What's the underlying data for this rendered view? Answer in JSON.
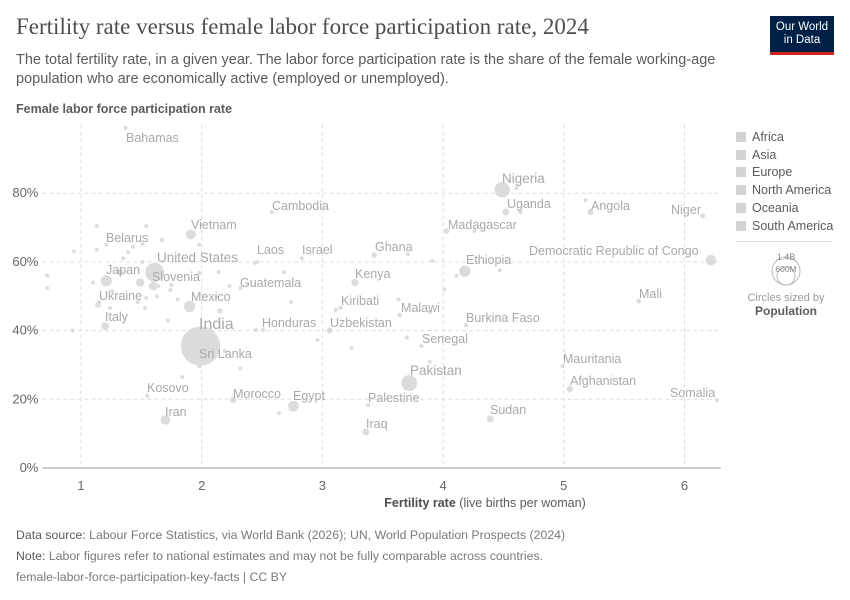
{
  "header": {
    "title": "Fertility rate versus female labor force participation rate, 2024",
    "subtitle": "The total fertility rate, in a given year. The labor force participation rate is the share of the female working-age population who are economically active (employed or unemployed).",
    "logo": "Our World in Data"
  },
  "legend": {
    "items": [
      "Africa",
      "Asia",
      "Europe",
      "North America",
      "Oceania",
      "South America"
    ],
    "size_large": "1.4B",
    "size_small": "600M",
    "size_note": "Circles sized by",
    "size_var": "Population"
  },
  "footer": {
    "source_label": "Data source:",
    "source": "Labour Force Statistics, via World Bank (2026); UN, World Population Prospects (2024)",
    "note_label": "Note:",
    "note": "Labor figures refer to national estimates and may not be fully comparable across countries.",
    "slug": "female-labor-force-participation-key-facts | CC BY"
  },
  "colors": {
    "point": "#d6d6d6",
    "label": "#a9a9a9",
    "grid": "#dddddd",
    "logo_bg": "#002147",
    "logo_bar": "#ce261e"
  },
  "chart_data": {
    "type": "scatter",
    "xlabel_bold": "Fertility rate",
    "xlabel_rest": "(live births per woman)",
    "ylabel": "Female labor force participation rate",
    "xlim": [
      0.68,
      6.3
    ],
    "ylim": [
      0,
      100
    ],
    "xticks": [
      "1",
      "2",
      "3",
      "4",
      "5",
      "6"
    ],
    "yticks": [
      "0%",
      "20%",
      "40%",
      "60%",
      "80%"
    ],
    "grid": true,
    "legend_position": "right",
    "size_variable": "Population",
    "points": [
      {
        "name": "Bahamas",
        "x": 1.37,
        "y": 99,
        "pop": 0.4
      },
      {
        "name": "Nigeria",
        "x": 4.49,
        "y": 81,
        "pop": 230
      },
      {
        "name": "Uganda",
        "x": 4.52,
        "y": 74.5,
        "pop": 50
      },
      {
        "name": "Angola",
        "x": 5.22,
        "y": 74.5,
        "pop": 38
      },
      {
        "name": "Niger",
        "x": 6.15,
        "y": 73.4,
        "pop": 27
      },
      {
        "name": "Madagascar",
        "x": 4.03,
        "y": 69,
        "pop": 31
      },
      {
        "name": "Ghana",
        "x": 3.43,
        "y": 62,
        "pop": 34
      },
      {
        "name": "Ethiopia",
        "x": 4.18,
        "y": 57.3,
        "pop": 130
      },
      {
        "name": "Democratic Republic of Congo",
        "x": 6.22,
        "y": 60.5,
        "pop": 110
      },
      {
        "name": "Kenya",
        "x": 3.27,
        "y": 54,
        "pop": 56
      },
      {
        "name": "Mali",
        "x": 5.62,
        "y": 48.6,
        "pop": 24
      },
      {
        "name": "Kiribati",
        "x": 3.15,
        "y": 46.6,
        "pop": 0.1
      },
      {
        "name": "Malawi",
        "x": 3.64,
        "y": 44.5,
        "pop": 21
      },
      {
        "name": "Uzbekistan",
        "x": 3.06,
        "y": 40,
        "pop": 36
      },
      {
        "name": "Burkina Faso",
        "x": 4.19,
        "y": 41.6,
        "pop": 23
      },
      {
        "name": "Senegal",
        "x": 3.82,
        "y": 35.5,
        "pop": 18
      },
      {
        "name": "Pakistan",
        "x": 3.72,
        "y": 24.7,
        "pop": 250
      },
      {
        "name": "Mauritania",
        "x": 4.99,
        "y": 29.7,
        "pop": 5
      },
      {
        "name": "Afghanistan",
        "x": 5.05,
        "y": 23,
        "pop": 42
      },
      {
        "name": "Somalia",
        "x": 6.27,
        "y": 19.8,
        "pop": 19
      },
      {
        "name": "Palestine",
        "x": 3.38,
        "y": 18.3,
        "pop": 5.5
      },
      {
        "name": "Sudan",
        "x": 4.39,
        "y": 14.3,
        "pop": 50
      },
      {
        "name": "Iraq",
        "x": 3.36,
        "y": 10.5,
        "pop": 46
      },
      {
        "name": "Cambodia",
        "x": 2.58,
        "y": 74.5,
        "pop": 17
      },
      {
        "name": "Vietnam",
        "x": 1.91,
        "y": 68,
        "pop": 100
      },
      {
        "name": "Laos",
        "x": 2.46,
        "y": 60,
        "pop": 7.7
      },
      {
        "name": "Israel",
        "x": 2.83,
        "y": 61,
        "pop": 9.4
      },
      {
        "name": "United States",
        "x": 1.61,
        "y": 57,
        "pop": 340
      },
      {
        "name": "Japan",
        "x": 1.21,
        "y": 54.5,
        "pop": 124
      },
      {
        "name": "Slovenia",
        "x": 1.64,
        "y": 53,
        "pop": 2.1
      },
      {
        "name": "Guatemala",
        "x": 2.32,
        "y": 52.4,
        "pop": 18
      },
      {
        "name": "Mexico",
        "x": 1.9,
        "y": 47,
        "pop": 130
      },
      {
        "name": "Ukraine",
        "x": 1.14,
        "y": 47.5,
        "pop": 38
      },
      {
        "name": "Belarus",
        "x": 1.21,
        "y": 65,
        "pop": 9
      },
      {
        "name": "Italy",
        "x": 1.2,
        "y": 41.3,
        "pop": 59
      },
      {
        "name": "India",
        "x": 1.99,
        "y": 35.5,
        "pop": 1450
      },
      {
        "name": "Sri Lanka",
        "x": 1.98,
        "y": 29.7,
        "pop": 23
      },
      {
        "name": "Honduras",
        "x": 2.51,
        "y": 40.2,
        "pop": 10.8
      },
      {
        "name": "Kosovo",
        "x": 1.55,
        "y": 21,
        "pop": 1.6
      },
      {
        "name": "Iran",
        "x": 1.7,
        "y": 14,
        "pop": 91
      },
      {
        "name": "Morocco",
        "x": 2.26,
        "y": 19.8,
        "pop": 38
      },
      {
        "name": "Egypt",
        "x": 2.76,
        "y": 18,
        "pop": 116
      },
      {
        "name": "",
        "x": 0.72,
        "y": 56,
        "pop": 20
      },
      {
        "name": "",
        "x": 0.72,
        "y": 52.4,
        "pop": 3
      },
      {
        "name": "",
        "x": 0.94,
        "y": 63,
        "pop": 3
      },
      {
        "name": "",
        "x": 0.93,
        "y": 40,
        "pop": 3
      },
      {
        "name": "",
        "x": 1.13,
        "y": 63.6,
        "pop": 3
      },
      {
        "name": "",
        "x": 1.13,
        "y": 70.4,
        "pop": 3
      },
      {
        "name": "",
        "x": 1.1,
        "y": 54,
        "pop": 3
      },
      {
        "name": "",
        "x": 1.15,
        "y": 48.3,
        "pop": 20
      },
      {
        "name": "",
        "x": 1.24,
        "y": 46.6,
        "pop": 3
      },
      {
        "name": "",
        "x": 1.26,
        "y": 51.5,
        "pop": 8
      },
      {
        "name": "",
        "x": 1.32,
        "y": 57,
        "pop": 50
      },
      {
        "name": "",
        "x": 1.35,
        "y": 61,
        "pop": 10
      },
      {
        "name": "",
        "x": 1.39,
        "y": 62.8,
        "pop": 5
      },
      {
        "name": "",
        "x": 1.43,
        "y": 64.4,
        "pop": 5
      },
      {
        "name": "",
        "x": 1.54,
        "y": 70.4,
        "pop": 3
      },
      {
        "name": "",
        "x": 1.51,
        "y": 65.2,
        "pop": 3
      },
      {
        "name": "",
        "x": 1.51,
        "y": 60,
        "pop": 5
      },
      {
        "name": "",
        "x": 1.47,
        "y": 48.3,
        "pop": 8
      },
      {
        "name": "",
        "x": 1.49,
        "y": 54,
        "pop": 70
      },
      {
        "name": "",
        "x": 1.54,
        "y": 49.5,
        "pop": 5
      },
      {
        "name": "",
        "x": 1.53,
        "y": 46.6,
        "pop": 3
      },
      {
        "name": "",
        "x": 1.6,
        "y": 53,
        "pop": 80
      },
      {
        "name": "",
        "x": 1.63,
        "y": 50,
        "pop": 5
      },
      {
        "name": "",
        "x": 1.67,
        "y": 66.4,
        "pop": 3
      },
      {
        "name": "",
        "x": 1.72,
        "y": 43,
        "pop": 3
      },
      {
        "name": "",
        "x": 1.74,
        "y": 51.8,
        "pop": 3
      },
      {
        "name": "",
        "x": 1.75,
        "y": 53.3,
        "pop": 3
      },
      {
        "name": "",
        "x": 1.8,
        "y": 49,
        "pop": 3
      },
      {
        "name": "",
        "x": 1.84,
        "y": 26.5,
        "pop": 3
      },
      {
        "name": "",
        "x": 1.98,
        "y": 65,
        "pop": 10
      },
      {
        "name": "",
        "x": 1.98,
        "y": 56.8,
        "pop": 3
      },
      {
        "name": "",
        "x": 2.14,
        "y": 57,
        "pop": 3
      },
      {
        "name": "",
        "x": 2.12,
        "y": 49.8,
        "pop": 3
      },
      {
        "name": "",
        "x": 2.15,
        "y": 45.7,
        "pop": 30
      },
      {
        "name": "",
        "x": 2.19,
        "y": 34,
        "pop": 3
      },
      {
        "name": "",
        "x": 2.23,
        "y": 53,
        "pop": 3
      },
      {
        "name": "",
        "x": 2.32,
        "y": 29,
        "pop": 3
      },
      {
        "name": "",
        "x": 2.44,
        "y": 59.7,
        "pop": 3
      },
      {
        "name": "",
        "x": 2.45,
        "y": 40.2,
        "pop": 3
      },
      {
        "name": "",
        "x": 2.68,
        "y": 57,
        "pop": 3
      },
      {
        "name": "",
        "x": 2.74,
        "y": 48.3,
        "pop": 3
      },
      {
        "name": "",
        "x": 2.64,
        "y": 16,
        "pop": 3
      },
      {
        "name": "",
        "x": 2.96,
        "y": 37.3,
        "pop": 3
      },
      {
        "name": "",
        "x": 3.24,
        "y": 35,
        "pop": 3
      },
      {
        "name": "",
        "x": 3.11,
        "y": 46,
        "pop": 3
      },
      {
        "name": "",
        "x": 3.63,
        "y": 49,
        "pop": 3
      },
      {
        "name": "",
        "x": 3.71,
        "y": 62.3,
        "pop": 3
      },
      {
        "name": "",
        "x": 3.7,
        "y": 38,
        "pop": 3
      },
      {
        "name": "",
        "x": 3.91,
        "y": 60.3,
        "pop": 3
      },
      {
        "name": "",
        "x": 4.01,
        "y": 52,
        "pop": 3
      },
      {
        "name": "",
        "x": 4.11,
        "y": 56,
        "pop": 5
      },
      {
        "name": "",
        "x": 4.47,
        "y": 57.6,
        "pop": 5
      },
      {
        "name": "",
        "x": 4.26,
        "y": 69,
        "pop": 3
      },
      {
        "name": "",
        "x": 4.64,
        "y": 74.5,
        "pop": 3
      },
      {
        "name": "",
        "x": 4.61,
        "y": 81.5,
        "pop": 10
      },
      {
        "name": "",
        "x": 5.18,
        "y": 78,
        "pop": 3
      },
      {
        "name": "",
        "x": 3.89,
        "y": 31,
        "pop": 3
      },
      {
        "name": "",
        "x": 3.89,
        "y": 45.4,
        "pop": 3
      }
    ]
  }
}
